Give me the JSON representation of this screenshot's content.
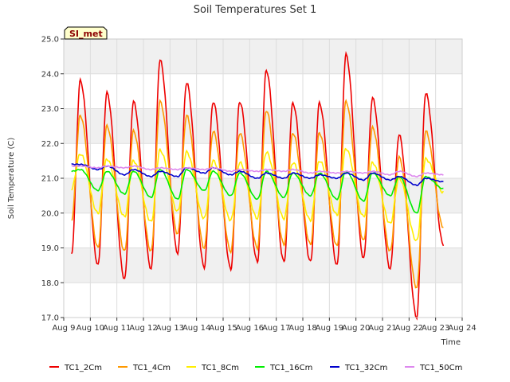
{
  "chart_data": {
    "type": "line",
    "title": "Soil Temperatures Set 1",
    "xlabel": "Time",
    "ylabel": "Soil Temperature (C)",
    "site_label": "SI_met",
    "ylim": [
      17.0,
      25.0
    ],
    "yticks": [
      "17.0",
      "18.0",
      "19.0",
      "20.0",
      "21.0",
      "22.0",
      "23.0",
      "24.0",
      "25.0"
    ],
    "xlim": [
      "2023-08-09",
      "2023-08-24"
    ],
    "xticks": [
      "Aug 9",
      "Aug 10",
      "Aug 11",
      "Aug 12",
      "Aug 13",
      "Aug 14",
      "Aug 15",
      "Aug 16",
      "Aug 17",
      "Aug 18",
      "Aug 19",
      "Aug 20",
      "Aug 21",
      "Aug 22",
      "Aug 23",
      "Aug 24"
    ],
    "grid": true,
    "legend_position": "bottom",
    "series": [
      {
        "name": "TC1_2Cm",
        "color": "#ee0000",
        "daily_max": [
          23.8,
          23.45,
          23.2,
          24.4,
          23.75,
          23.2,
          23.2,
          24.1,
          23.15,
          23.15,
          24.55,
          23.3,
          22.25,
          23.45
        ],
        "daily_min": [
          18.8,
          18.5,
          18.1,
          18.4,
          18.85,
          18.45,
          18.4,
          18.6,
          18.6,
          18.6,
          18.5,
          18.7,
          18.4,
          17.0,
          19.1
        ]
      },
      {
        "name": "TC1_4Cm",
        "color": "#ff9900",
        "daily_max": [
          22.8,
          22.5,
          22.35,
          23.2,
          22.8,
          22.35,
          22.3,
          22.95,
          22.3,
          22.3,
          23.2,
          22.45,
          21.6,
          22.35
        ],
        "daily_min": [
          19.8,
          19.0,
          18.9,
          18.9,
          19.4,
          19.0,
          18.9,
          19.0,
          19.1,
          19.1,
          19.05,
          19.2,
          18.9,
          17.85,
          19.6
        ]
      },
      {
        "name": "TC1_8Cm",
        "color": "#ffee00",
        "daily_max": [
          21.7,
          21.55,
          21.5,
          21.8,
          21.75,
          21.5,
          21.45,
          21.75,
          21.45,
          21.5,
          21.85,
          21.45,
          21.0,
          21.55
        ],
        "daily_min": [
          20.7,
          20.0,
          19.9,
          19.75,
          20.05,
          19.85,
          19.8,
          19.85,
          19.85,
          19.8,
          19.95,
          19.9,
          19.7,
          19.2,
          20.6
        ]
      },
      {
        "name": "TC1_16Cm",
        "color": "#00ee00",
        "daily_max": [
          21.25,
          21.2,
          21.2,
          21.25,
          21.25,
          21.2,
          21.15,
          21.2,
          21.15,
          21.15,
          21.2,
          21.15,
          21.05,
          21.05
        ],
        "daily_min": [
          21.2,
          20.65,
          20.55,
          20.45,
          20.4,
          20.65,
          20.5,
          20.4,
          20.45,
          20.5,
          20.4,
          20.35,
          20.5,
          20.0,
          20.7
        ]
      },
      {
        "name": "TC1_32Cm",
        "color": "#0000cc",
        "daily_max": [
          21.4,
          21.35,
          21.25,
          21.2,
          21.3,
          21.3,
          21.2,
          21.15,
          21.15,
          21.1,
          21.15,
          21.15,
          21.05,
          21.0
        ],
        "daily_min": [
          21.4,
          21.25,
          21.1,
          21.05,
          21.05,
          21.15,
          21.1,
          21.0,
          21.0,
          21.0,
          21.0,
          20.95,
          20.95,
          20.8,
          20.9
        ]
      },
      {
        "name": "TC1_50Cm",
        "color": "#dd88ee",
        "daily_max": [
          21.35,
          21.35,
          21.35,
          21.3,
          21.3,
          21.3,
          21.25,
          21.25,
          21.25,
          21.2,
          21.2,
          21.2,
          21.2,
          21.15
        ],
        "daily_min": [
          21.35,
          21.3,
          21.3,
          21.25,
          21.25,
          21.25,
          21.2,
          21.2,
          21.2,
          21.15,
          21.15,
          21.15,
          21.1,
          21.05,
          21.1
        ]
      }
    ]
  }
}
